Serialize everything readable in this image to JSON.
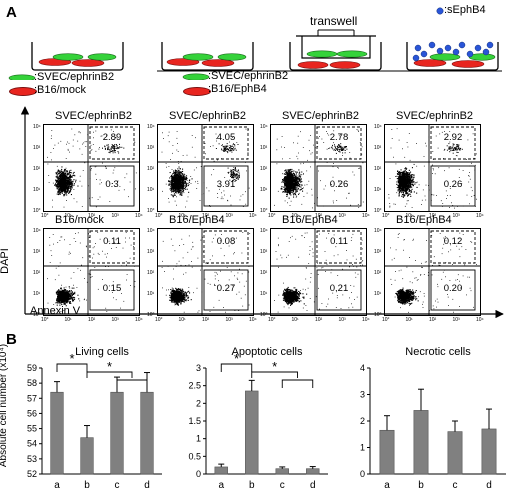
{
  "panels": {
    "a": "A",
    "b": "B"
  },
  "schematic": {
    "transwell_label": "transwell",
    "sephb4_label": ":sEphB4",
    "legend_left": [
      ":SVEC/ephrinB2",
      ":B16/mock"
    ],
    "legend_right": [
      ":SVEC/ephrinB2",
      ":B16/EphB4"
    ]
  },
  "flow": {
    "y_axis": "DAPI",
    "x_axis": "Annexin V",
    "ticks_x": [
      "10°",
      "10¹",
      "10²",
      "10³",
      "10⁴"
    ],
    "ticks_y": [
      "10⁴",
      "10³",
      "10²",
      "10¹",
      "10°"
    ],
    "top_row": [
      {
        "title": "SVEC/ephrinB2",
        "upper": "2.89",
        "lower": "0.3"
      },
      {
        "title": "SVEC/ephrinB2",
        "upper": "4.05",
        "lower": "3.91"
      },
      {
        "title": "SVEC/ephrinB2",
        "upper": "2.78",
        "lower": "0.26"
      },
      {
        "title": "SVEC/ephrinB2",
        "upper": "2.92",
        "lower": "0.26"
      }
    ],
    "bottom_row": [
      {
        "title": "B16/mock",
        "upper": "0.11",
        "lower": "0.15"
      },
      {
        "title": "B16/EphB4",
        "upper": "0.08",
        "lower": "0.27"
      },
      {
        "title": "B16/EphB4",
        "upper": "0.11",
        "lower": "0,21"
      },
      {
        "title": "B16/EphB4",
        "upper": "0.12",
        "lower": "0.20"
      }
    ]
  },
  "y_axis_label": "Absolute cell number (x10⁴)",
  "significance_mark": "*",
  "chart_data": [
    {
      "type": "bar",
      "title": "Living cells",
      "categories": [
        "a",
        "b",
        "c",
        "d"
      ],
      "values": [
        57.4,
        54.4,
        57.4,
        57.4
      ],
      "errors": [
        0.7,
        0.8,
        1.0,
        1.3
      ],
      "ylim": [
        52,
        59
      ],
      "yticks": [
        "52",
        "53",
        "54",
        "55",
        "56",
        "57",
        "58",
        "59"
      ],
      "bar_color": "#808080"
    },
    {
      "type": "bar",
      "title": "Apoptotic cells",
      "categories": [
        "a",
        "b",
        "c",
        "d"
      ],
      "values": [
        0.2,
        2.35,
        0.15,
        0.15
      ],
      "errors": [
        0.08,
        0.3,
        0.05,
        0.06
      ],
      "ylim": [
        0,
        3
      ],
      "yticks": [
        "0",
        "0.5",
        "1",
        "1.5",
        "2",
        "2.5",
        "3"
      ],
      "bar_color": "#808080"
    },
    {
      "type": "bar",
      "title": "Necrotic cells",
      "categories": [
        "a",
        "b",
        "c",
        "d"
      ],
      "values": [
        1.65,
        2.4,
        1.6,
        1.7
      ],
      "errors": [
        0.55,
        0.8,
        0.4,
        0.75
      ],
      "ylim": [
        0,
        4
      ],
      "yticks": [
        "0",
        "1",
        "2",
        "3",
        "4"
      ],
      "bar_color": "#808080"
    }
  ]
}
